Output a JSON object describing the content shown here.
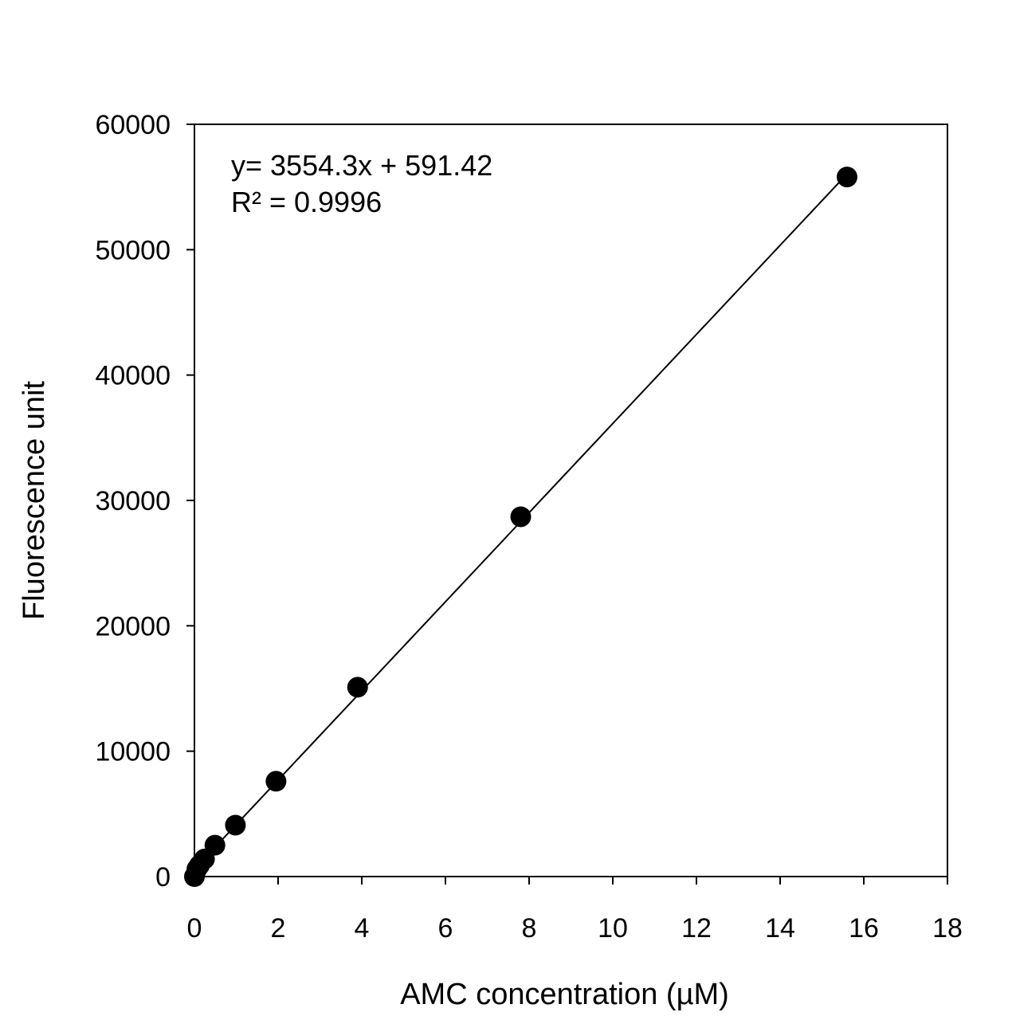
{
  "chart_data": {
    "type": "scatter",
    "title": "",
    "xlabel": "AMC concentration (µM)",
    "ylabel": "Fluorescence  unit",
    "xlim": [
      0,
      18
    ],
    "ylim": [
      0,
      60000
    ],
    "x_ticks": [
      0,
      2,
      4,
      6,
      8,
      10,
      12,
      14,
      16,
      18
    ],
    "y_ticks": [
      0,
      10000,
      20000,
      30000,
      40000,
      50000,
      60000
    ],
    "x_tick_labels": [
      "0",
      "2",
      "4",
      "6",
      "8",
      "10",
      "12",
      "14",
      "16",
      "18"
    ],
    "y_tick_labels": [
      "0",
      "10000",
      "20000",
      "30000",
      "40000",
      "50000",
      "60000"
    ],
    "grid": false,
    "legend": "none",
    "series": [
      {
        "marker": "filled-circle",
        "color": "#000000",
        "points": [
          {
            "x": 0,
            "y": 0
          },
          {
            "x": 0.06,
            "y": 600
          },
          {
            "x": 0.12,
            "y": 900
          },
          {
            "x": 0.24,
            "y": 1400
          },
          {
            "x": 0.49,
            "y": 2500
          },
          {
            "x": 0.98,
            "y": 4100
          },
          {
            "x": 1.95,
            "y": 7600
          },
          {
            "x": 3.9,
            "y": 15100
          },
          {
            "x": 7.8,
            "y": 28700
          },
          {
            "x": 15.6,
            "y": 55800
          }
        ]
      }
    ],
    "trendline": {
      "slope": 3554.3,
      "intercept": 591.42,
      "x_range": [
        0,
        15.6
      ],
      "color": "#000000"
    },
    "annotations": [
      "y= 3554.3x + 591.42",
      "R² = 0.9996"
    ]
  }
}
